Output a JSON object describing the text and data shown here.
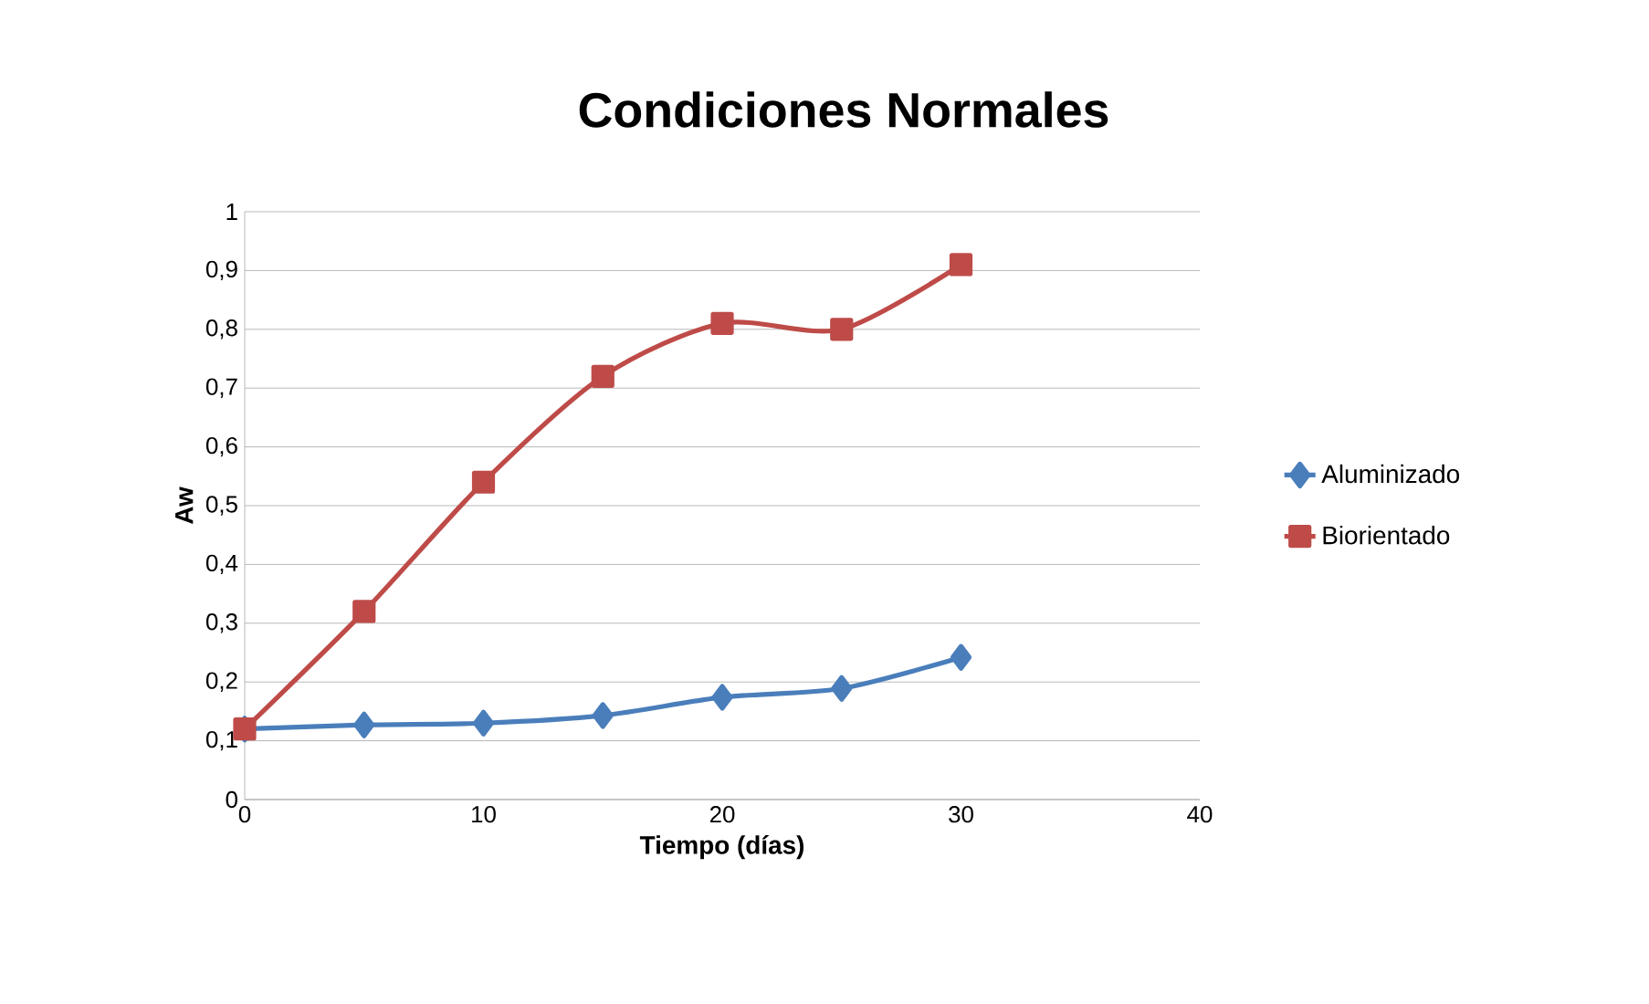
{
  "chart_data": {
    "type": "line",
    "title": "Condiciones Normales",
    "xlabel": "Tiempo (días)",
    "ylabel": "Aw",
    "xlim": [
      0,
      40
    ],
    "xticks": [
      0,
      10,
      20,
      30,
      40
    ],
    "ylim": [
      0,
      1
    ],
    "yticks": [
      0,
      {
        "value": 0.1,
        "label": "0,1"
      },
      {
        "value": 0.2,
        "label": "0,2"
      },
      {
        "value": 0.3,
        "label": "0,3"
      },
      {
        "value": 0.4,
        "label": "0,4"
      },
      {
        "value": 0.5,
        "label": "0,5"
      },
      {
        "value": 0.6,
        "label": "0,6"
      },
      {
        "value": 0.7,
        "label": "0,7"
      },
      {
        "value": 0.8,
        "label": "0,8"
      },
      {
        "value": 0.9,
        "label": "0,9"
      },
      1
    ],
    "grid": "y",
    "legend": "right",
    "x": [
      0,
      5,
      10,
      15,
      20,
      25,
      30
    ],
    "series": [
      {
        "name": "Aluminizado",
        "color": "#4a7ebb",
        "marker": "diamond",
        "values": [
          0.12,
          0.127,
          0.13,
          0.143,
          0.174,
          0.189,
          0.242
        ]
      },
      {
        "name": "Biorientado",
        "color": "#be4b48",
        "marker": "square",
        "values": [
          0.12,
          0.32,
          0.54,
          0.72,
          0.81,
          0.8,
          0.91
        ]
      }
    ]
  }
}
